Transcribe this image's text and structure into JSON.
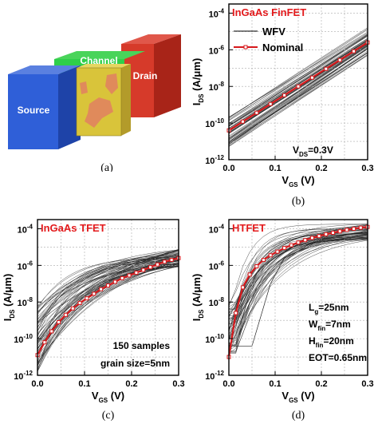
{
  "panels": {
    "a": {
      "caption": "(a)",
      "labels": {
        "source": "Source",
        "channel": "Channel",
        "drain": "Drain"
      },
      "colors": {
        "source": "#2f5fd8",
        "channel": "#2fcf4a",
        "drain": "#d63a2a",
        "gate": "#d9c43a",
        "grain": "#e08a5b",
        "gate_edge": "#b39b2a"
      }
    },
    "b": {
      "caption": "(b)",
      "title": "InGaAs FinFET",
      "title_color": "#e31a1c",
      "ylabel_main": "I",
      "ylabel_sub": "DS",
      "ylabel_rest": " (A/μm)",
      "xlabel_main": "V",
      "xlabel_sub": "GS",
      "xlabel_rest": " (V)",
      "xticks": [
        "0.0",
        "0.1",
        "0.2",
        "0.3"
      ],
      "ytick_exps": [
        "-4",
        "-6",
        "-8",
        "-10",
        "-12"
      ],
      "legend": {
        "wfv": "WFV",
        "nominal": "Nominal"
      },
      "annotation": {
        "main": "V",
        "sub": "DS",
        "rest": "=0.3V"
      }
    },
    "c": {
      "caption": "(c)",
      "title": "InGaAs TFET",
      "title_color": "#e31a1c",
      "ylabel_main": "I",
      "ylabel_sub": "DS",
      "ylabel_rest": " (A/μm)",
      "xlabel_main": "V",
      "xlabel_sub": "GS",
      "xlabel_rest": " (V)",
      "xticks": [
        "0.0",
        "0.1",
        "0.2",
        "0.3"
      ],
      "ytick_exps": [
        "-4",
        "-6",
        "-8",
        "-10",
        "-12"
      ],
      "annotations": [
        "150 samples",
        "grain size=5nm"
      ]
    },
    "d": {
      "caption": "(d)",
      "title": "HTFET",
      "title_color": "#e31a1c",
      "ylabel_main": "I",
      "ylabel_sub": "DS",
      "ylabel_rest": " (A/μm)",
      "xlabel_main": "V",
      "xlabel_sub": "GS",
      "xlabel_rest": " (V)",
      "xticks": [
        "0.00",
        "0.05",
        "0.10",
        "0.15",
        "0.20",
        "0.25",
        "0.30"
      ],
      "xtick_labels_shown": [
        "0.0",
        "0.1",
        "0.2",
        "0.3"
      ],
      "ytick_exps": [
        "-4",
        "-6",
        "-8",
        "-10",
        "-12"
      ],
      "params": [
        {
          "main": "L",
          "sub": "g",
          "rest": "=25nm"
        },
        {
          "main": "W",
          "sub": "fin",
          "rest": "=7nm"
        },
        {
          "main": "H",
          "sub": "fin",
          "rest": "=20nm"
        },
        {
          "main": "EOT=0.65nm",
          "sub": "",
          "rest": ""
        }
      ]
    }
  },
  "chart_data": [
    {
      "type": "line",
      "title": "InGaAs FinFET",
      "xlabel": "VGS (V)",
      "ylabel": "IDS (A/μm)",
      "xlim": [
        0,
        0.3
      ],
      "ylim_log10": [
        -12,
        -3.5
      ],
      "yscale": "log",
      "series": [
        {
          "name": "WFV",
          "style": "black thin lines, many samples",
          "x": [
            0,
            0.3
          ],
          "log10_y_band": [
            [
              -11.3,
              -9.6
            ],
            [
              -6.2,
              -4.9
            ]
          ]
        },
        {
          "name": "Nominal",
          "style": "red line with square markers",
          "x": [
            0,
            0.03,
            0.06,
            0.09,
            0.12,
            0.15,
            0.18,
            0.21,
            0.24,
            0.27,
            0.3
          ],
          "log10_y": [
            -10.4,
            -9.92,
            -9.44,
            -8.96,
            -8.48,
            -8.0,
            -7.52,
            -7.04,
            -6.56,
            -6.08,
            -5.6
          ]
        }
      ]
    },
    {
      "type": "line",
      "title": "InGaAs TFET",
      "xlabel": "VGS (V)",
      "ylabel": "IDS (A/μm)",
      "xlim": [
        0,
        0.3
      ],
      "ylim_log10": [
        -12,
        -3.5
      ],
      "yscale": "log",
      "series": [
        {
          "name": "WFV",
          "style": "black thin lines, 150 samples",
          "x": [
            0,
            0.3
          ],
          "log10_y_band": [
            [
              -11.8,
              -8.2
            ],
            [
              -6.1,
              -5.1
            ]
          ]
        },
        {
          "name": "Nominal",
          "style": "red line with square markers",
          "x": [
            0,
            0.015,
            0.03,
            0.045,
            0.06,
            0.075,
            0.09,
            0.105,
            0.12,
            0.135,
            0.15,
            0.165,
            0.18,
            0.195,
            0.21,
            0.225,
            0.24,
            0.255,
            0.27,
            0.285,
            0.3
          ],
          "log10_y": [
            -10.9,
            -10.2,
            -9.6,
            -9.1,
            -8.7,
            -8.35,
            -8.05,
            -7.8,
            -7.55,
            -7.3,
            -7.1,
            -6.9,
            -6.7,
            -6.55,
            -6.4,
            -6.25,
            -6.1,
            -5.95,
            -5.8,
            -5.7,
            -5.6
          ]
        }
      ]
    },
    {
      "type": "line",
      "title": "HTFET",
      "xlabel": "VGS (V)",
      "ylabel": "IDS (A/μm)",
      "xlim": [
        0,
        0.3
      ],
      "ylim_log10": [
        -12,
        -3.5
      ],
      "yscale": "log",
      "series": [
        {
          "name": "WFV",
          "style": "black thin lines",
          "x": [
            0,
            0.3
          ],
          "log10_y_band": [
            [
              -11.0,
              -5.0
            ],
            [
              -4.6,
              -3.7
            ]
          ]
        },
        {
          "name": "Nominal",
          "style": "red line with square markers",
          "x": [
            0,
            0.015,
            0.03,
            0.045,
            0.06,
            0.075,
            0.09,
            0.105,
            0.12,
            0.135,
            0.15,
            0.165,
            0.18,
            0.195,
            0.21,
            0.225,
            0.24,
            0.255,
            0.27,
            0.285,
            0.3
          ],
          "log10_y": [
            -11.0,
            -8.6,
            -7.2,
            -6.5,
            -6.05,
            -5.7,
            -5.45,
            -5.25,
            -5.05,
            -4.9,
            -4.75,
            -4.62,
            -4.5,
            -4.4,
            -4.3,
            -4.22,
            -4.14,
            -4.06,
            -4.0,
            -3.94,
            -3.9
          ]
        }
      ]
    }
  ]
}
